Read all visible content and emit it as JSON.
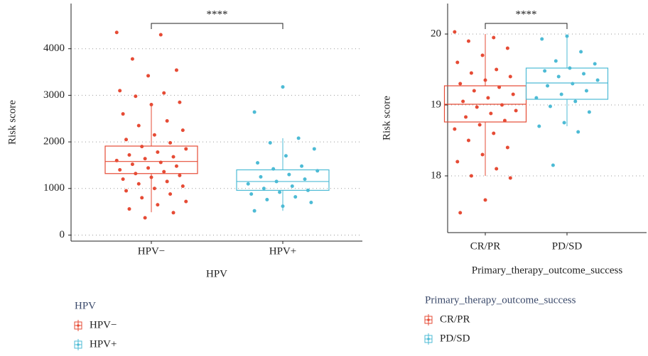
{
  "chart_data": [
    {
      "type": "box",
      "y_label": "Risk score",
      "x_label": "HPV",
      "annotation": "****",
      "categories": [
        "HPV−",
        "HPV+"
      ],
      "colors": [
        "#e64b35",
        "#4dbbd5"
      ],
      "ylim": [
        -130,
        4970
      ],
      "yticks": [
        0,
        1000,
        2000,
        3000,
        4000
      ],
      "grid": true,
      "stats": [
        {
          "min": 490,
          "q1": 1320,
          "median": 1580,
          "q3": 1910,
          "max": 2770
        },
        {
          "min": 520,
          "q1": 960,
          "median": 1150,
          "q3": 1400,
          "max": 2080
        }
      ],
      "points": [
        [
          4350,
          4300,
          3780,
          3540,
          3420,
          3100,
          3050,
          2980,
          2850,
          2800,
          2600,
          2450,
          2350,
          2250,
          2150,
          2050,
          1980,
          1900,
          1850,
          1780,
          1720,
          1680,
          1640,
          1600,
          1560,
          1520,
          1480,
          1440,
          1400,
          1360,
          1320,
          1280,
          1240,
          1200,
          1150,
          1100,
          1050,
          1000,
          950,
          880,
          800,
          720,
          650,
          560,
          480,
          370
        ],
        [
          3180,
          2640,
          2080,
          1980,
          1850,
          1700,
          1550,
          1480,
          1420,
          1380,
          1300,
          1250,
          1200,
          1150,
          1100,
          1050,
          1000,
          960,
          920,
          880,
          820,
          760,
          700,
          620,
          520
        ]
      ]
    },
    {
      "type": "box",
      "y_label": "Risk score",
      "x_label": "Primary_therapy_outcome_success",
      "annotation": "****",
      "categories": [
        "CR/PR",
        "PD/SD"
      ],
      "colors": [
        "#e64b35",
        "#4dbbd5"
      ],
      "ylim": [
        17.2,
        20.43
      ],
      "yticks": [
        18,
        19,
        20
      ],
      "grid": true,
      "stats": [
        {
          "min": 18.0,
          "q1": 18.76,
          "median": 19.01,
          "q3": 19.27,
          "max": 20.0
        },
        {
          "min": 18.7,
          "q1": 19.08,
          "median": 19.31,
          "q3": 19.52,
          "max": 19.95
        }
      ],
      "points": [
        [
          20.03,
          19.95,
          19.9,
          19.8,
          19.7,
          19.6,
          19.5,
          19.45,
          19.4,
          19.35,
          19.3,
          19.25,
          19.2,
          19.15,
          19.1,
          19.05,
          19.0,
          18.97,
          18.92,
          18.88,
          18.83,
          18.78,
          18.72,
          18.66,
          18.6,
          18.5,
          18.4,
          18.3,
          18.2,
          18.1,
          18.0,
          17.97,
          17.66,
          17.48
        ],
        [
          19.97,
          19.93,
          19.75,
          19.62,
          19.58,
          19.52,
          19.48,
          19.44,
          19.4,
          19.35,
          19.3,
          19.27,
          19.2,
          19.15,
          19.1,
          19.05,
          18.98,
          18.9,
          18.75,
          18.7,
          18.62,
          18.15
        ]
      ]
    }
  ]
}
